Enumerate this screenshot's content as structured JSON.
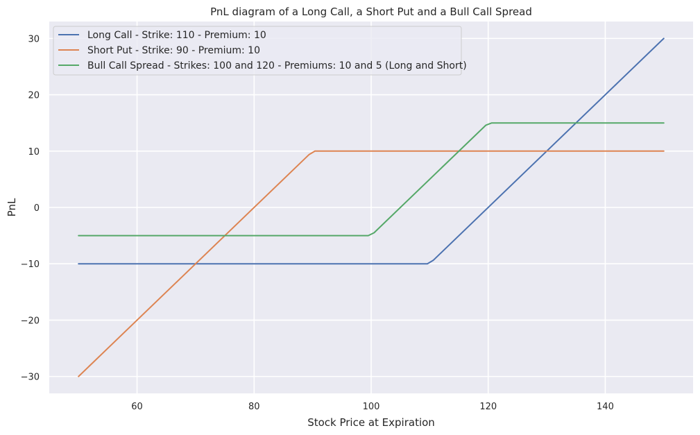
{
  "chart_data": {
    "type": "line",
    "title": "PnL diagram of a Long Call, a Short Put and a Bull Call Spread",
    "xlabel": "Stock Price at Expiration",
    "ylabel": "PnL",
    "xlim": [
      45,
      155
    ],
    "ylim": [
      -33,
      33
    ],
    "xticks": [
      60,
      80,
      100,
      120,
      140
    ],
    "yticks": [
      -30,
      -20,
      -10,
      0,
      10,
      20,
      30
    ],
    "xtick_labels": [
      "60",
      "80",
      "100",
      "120",
      "140"
    ],
    "ytick_labels": [
      "−30",
      "−20",
      "−10",
      "0",
      "10",
      "20",
      "30"
    ],
    "grid": true,
    "background": "#eaeaf2",
    "legend_position": "top-left",
    "series": [
      {
        "name": "Long Call - Strike: 110 - Premium: 10",
        "color": "#4c72b0",
        "x": [
          50,
          109.6,
          110.6,
          150
        ],
        "y": [
          -10,
          -10,
          -9.4,
          30
        ]
      },
      {
        "name": "Short Put - Strike: 90 - Premium: 10",
        "color": "#dd8452",
        "x": [
          50,
          89.4,
          90.4,
          150
        ],
        "y": [
          -30,
          9.4,
          10,
          10
        ]
      },
      {
        "name": "Bull Call Spread - Strikes: 100 and 120 - Premiums: 10 and 5 (Long and Short)",
        "color": "#55a868",
        "x": [
          50,
          99.5,
          100.5,
          119.6,
          120.6,
          150
        ],
        "y": [
          -5,
          -5,
          -4.5,
          14.6,
          15,
          15
        ]
      }
    ]
  }
}
